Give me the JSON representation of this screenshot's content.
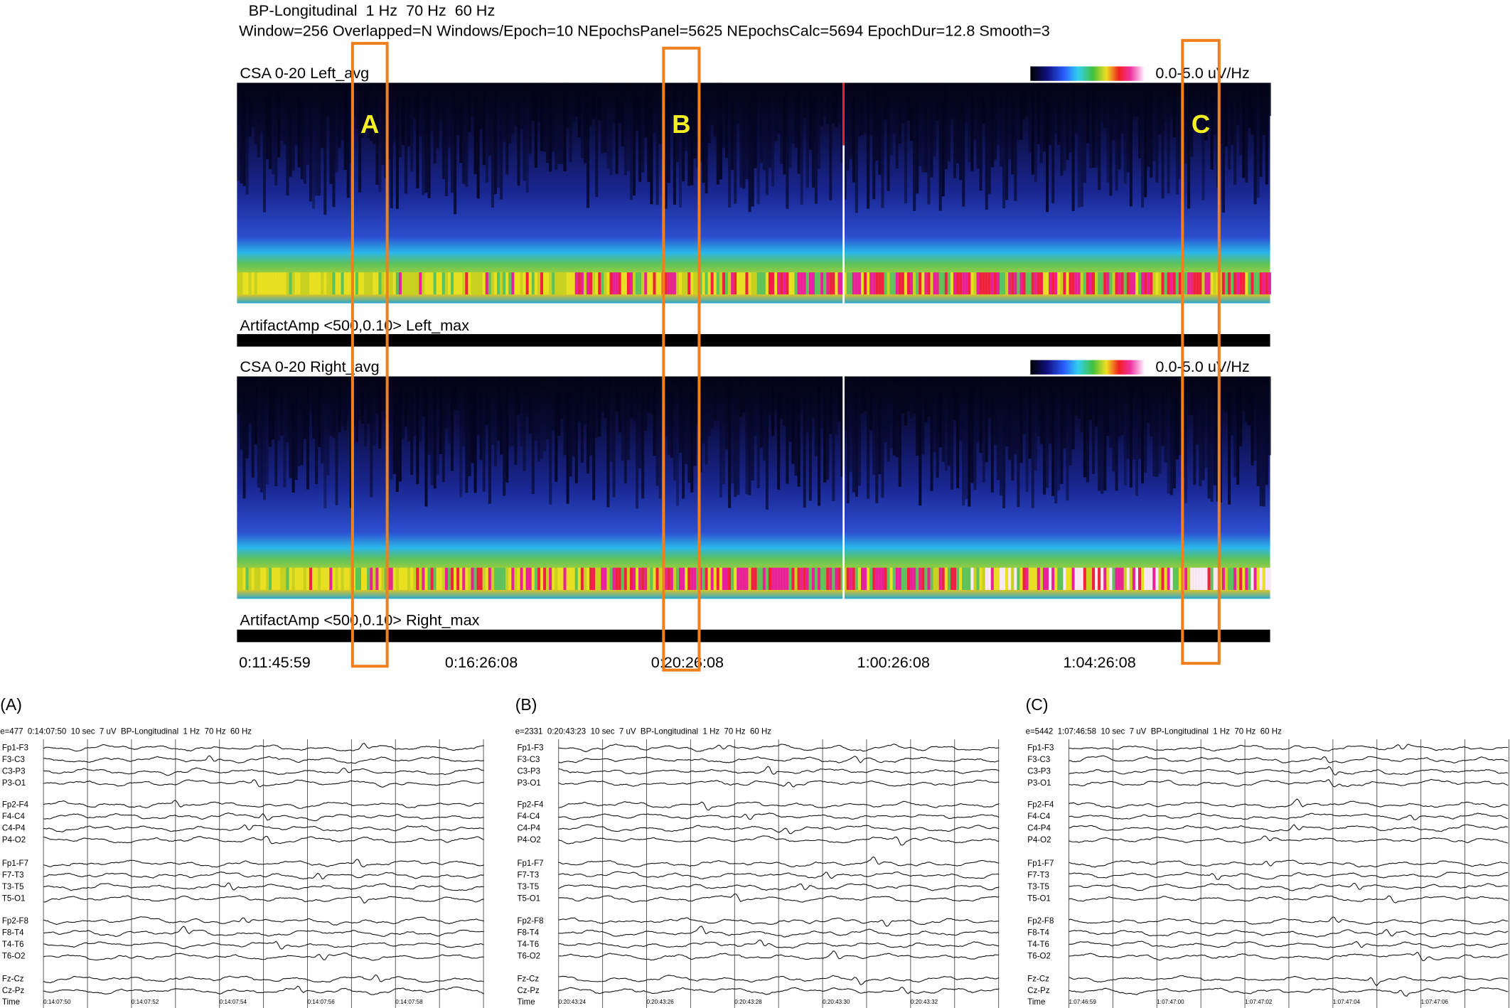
{
  "header": {
    "line1": "BP-Longitudinal  1 Hz  70 Hz  60 Hz",
    "line2": "Window=256 Overlapped=N Windows/Epoch=10 NEpochsPanel=5625 NEpochsCalc=5694 EpochDur=12.8 Smooth=3"
  },
  "csa_panels": [
    {
      "title": "CSA 0-20 Left_avg",
      "scale": "0.0-5.0 uV/Hz",
      "artifact": "ArtifactAmp <500,0.10> Left_max"
    },
    {
      "title": "CSA 0-20 Right_avg",
      "scale": "0.0-5.0 uV/Hz",
      "artifact": "ArtifactAmp <500,0.10> Right_max"
    }
  ],
  "markers": [
    "A",
    "B",
    "C"
  ],
  "time_labels": [
    "0:11:45:59",
    "0:16:26:08",
    "0:20:26:08",
    "1:00:26:08",
    "1:04:26:08"
  ],
  "channels": [
    "Fp1-F3",
    "F3-C3",
    "C3-P3",
    "P3-O1",
    "Fp2-F4",
    "F4-C4",
    "C4-P4",
    "P4-O2",
    "Fp1-F7",
    "F7-T3",
    "T3-T5",
    "T5-O1",
    "Fp2-F8",
    "F8-T4",
    "T4-T6",
    "T6-O2",
    "Fz-Cz",
    "Cz-Pz"
  ],
  "time_label": "Time",
  "eeg_panels": [
    {
      "label": "(A)",
      "header": "e=477  0:14:07:50  10 sec  7 uV  BP-Longitudinal  1 Hz  70 Hz  60 Hz",
      "ticks": [
        "0:14:07:50",
        "0:14:07:52",
        "0:14:07:54",
        "0:14:07:56",
        "0:14:07:58"
      ]
    },
    {
      "label": "(B)",
      "header": "e=2331  0:20:43:23  10 sec  7 uV  BP-Longitudinal  1 Hz  70 Hz  60 Hz",
      "ticks": [
        "0:20:43:24",
        "0:20:43:26",
        "0:20:43:28",
        "0:20:43:30",
        "0:20:43:32"
      ]
    },
    {
      "label": "(C)",
      "header": "e=5442  1:07:46:58  10 sec  7 uV  BP-Longitudinal  1 Hz  70 Hz  60 Hz",
      "ticks": [
        "1:07:46:59",
        "1:07:47:00",
        "1:07:47:02",
        "1:07:47:04",
        "1:07:47:06"
      ]
    }
  ]
}
